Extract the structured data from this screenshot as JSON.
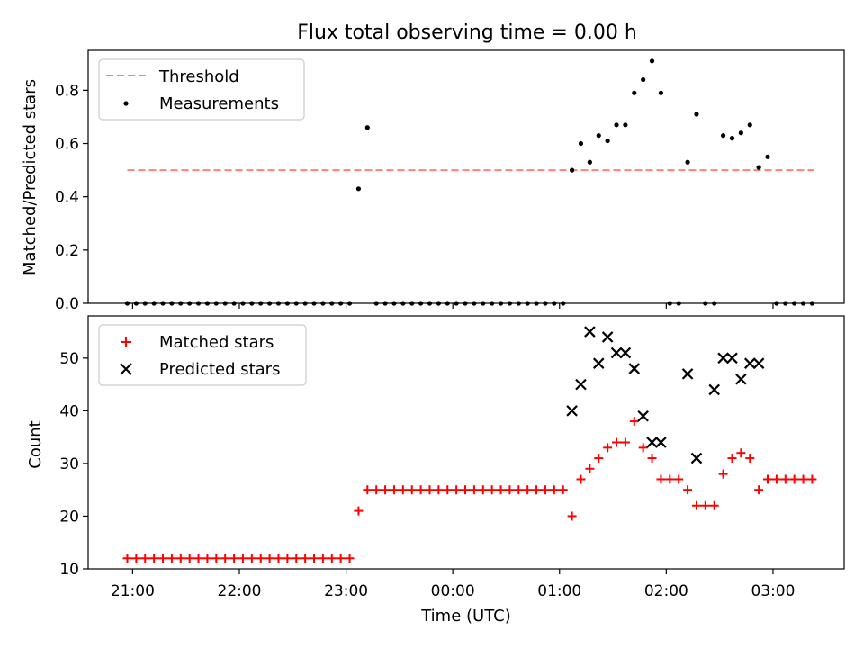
{
  "figure": {
    "title": "Flux total observing time = 0.00 h"
  },
  "chart_data": [
    {
      "type": "scatter",
      "panel": "top",
      "ylabel": "Matched/Predicted stars",
      "xlabel": "",
      "ylim": [
        0,
        0.95
      ],
      "y_ticks": [
        "0.0",
        "0.2",
        "0.4",
        "0.6",
        "0.8"
      ],
      "grid": false,
      "legend_position": "upper-left",
      "series": [
        {
          "name": "Threshold",
          "kind": "dashed-line",
          "color": "#ff7f7f",
          "x": [
            "20:57",
            "03:23"
          ],
          "values": [
            0.5,
            0.5
          ]
        },
        {
          "name": "Measurements",
          "kind": "dot",
          "color": "#000000",
          "x": [
            "20:57",
            "21:02",
            "21:07",
            "21:12",
            "21:17",
            "21:22",
            "21:27",
            "21:32",
            "21:37",
            "21:42",
            "21:47",
            "21:52",
            "21:57",
            "22:02",
            "22:07",
            "22:12",
            "22:17",
            "22:22",
            "22:27",
            "22:32",
            "22:37",
            "22:42",
            "22:47",
            "22:52",
            "22:57",
            "23:02",
            "23:07",
            "23:12",
            "23:17",
            "23:22",
            "23:27",
            "23:32",
            "23:37",
            "23:42",
            "23:47",
            "23:52",
            "23:57",
            "00:02",
            "00:07",
            "00:12",
            "00:17",
            "00:22",
            "00:27",
            "00:32",
            "00:37",
            "00:42",
            "00:47",
            "00:52",
            "00:57",
            "01:02",
            "01:07",
            "01:12",
            "01:17",
            "01:22",
            "01:27",
            "01:32",
            "01:37",
            "01:42",
            "01:47",
            "01:52",
            "01:57",
            "02:02",
            "02:07",
            "02:12",
            "02:17",
            "02:22",
            "02:27",
            "02:32",
            "02:37",
            "02:42",
            "02:47",
            "02:52",
            "02:57",
            "03:02",
            "03:07",
            "03:12",
            "03:17",
            "03:22"
          ],
          "values": [
            0,
            0,
            0,
            0,
            0,
            0,
            0,
            0,
            0,
            0,
            0,
            0,
            0,
            0,
            0,
            0,
            0,
            0,
            0,
            0,
            0,
            0,
            0,
            0,
            0,
            0,
            0.43,
            0.66,
            0,
            0,
            0,
            0,
            0,
            0,
            0,
            0,
            0,
            0,
            0,
            0,
            0,
            0,
            0,
            0,
            0,
            0,
            0,
            0,
            0,
            0,
            0.5,
            0.6,
            0.53,
            0.63,
            0.61,
            0.67,
            0.67,
            0.79,
            0.84,
            0.91,
            0.79,
            0,
            0,
            0.53,
            0.71,
            0,
            0,
            0.63,
            0.62,
            0.64,
            0.67,
            0.51,
            0.55,
            0,
            0,
            0,
            0,
            0
          ]
        }
      ]
    },
    {
      "type": "scatter",
      "panel": "bottom",
      "xlabel": "Time (UTC)",
      "ylabel": "Count",
      "xlim": [
        "20:35",
        "03:40"
      ],
      "x_ticks": [
        "21:00",
        "22:00",
        "23:00",
        "00:00",
        "01:00",
        "02:00",
        "03:00"
      ],
      "ylim": [
        10,
        58
      ],
      "y_ticks": [
        "10",
        "20",
        "30",
        "40",
        "50"
      ],
      "grid": false,
      "legend_position": "upper-left",
      "series": [
        {
          "name": "Matched stars",
          "marker": "plus",
          "color": "#ff0000",
          "x": [
            "20:57",
            "21:02",
            "21:07",
            "21:12",
            "21:17",
            "21:22",
            "21:27",
            "21:32",
            "21:37",
            "21:42",
            "21:47",
            "21:52",
            "21:57",
            "22:02",
            "22:07",
            "22:12",
            "22:17",
            "22:22",
            "22:27",
            "22:32",
            "22:37",
            "22:42",
            "22:47",
            "22:52",
            "22:57",
            "23:02",
            "23:07",
            "23:12",
            "23:17",
            "23:22",
            "23:27",
            "23:32",
            "23:37",
            "23:42",
            "23:47",
            "23:52",
            "23:57",
            "00:02",
            "00:07",
            "00:12",
            "00:17",
            "00:22",
            "00:27",
            "00:32",
            "00:37",
            "00:42",
            "00:47",
            "00:52",
            "00:57",
            "01:02",
            "01:07",
            "01:12",
            "01:17",
            "01:22",
            "01:27",
            "01:32",
            "01:37",
            "01:42",
            "01:47",
            "01:52",
            "01:57",
            "02:02",
            "02:07",
            "02:12",
            "02:17",
            "02:22",
            "02:27",
            "02:32",
            "02:37",
            "02:42",
            "02:47",
            "02:52",
            "02:57",
            "03:02",
            "03:07",
            "03:12",
            "03:17",
            "03:22"
          ],
          "values": [
            12,
            12,
            12,
            12,
            12,
            12,
            12,
            12,
            12,
            12,
            12,
            12,
            12,
            12,
            12,
            12,
            12,
            12,
            12,
            12,
            12,
            12,
            12,
            12,
            12,
            12,
            21,
            25,
            25,
            25,
            25,
            25,
            25,
            25,
            25,
            25,
            25,
            25,
            25,
            25,
            25,
            25,
            25,
            25,
            25,
            25,
            25,
            25,
            25,
            25,
            20,
            27,
            29,
            31,
            33,
            34,
            34,
            38,
            33,
            31,
            27,
            27,
            27,
            25,
            22,
            22,
            22,
            28,
            31,
            32,
            31,
            25,
            27,
            27,
            27,
            27,
            27,
            27
          ]
        },
        {
          "name": "Predicted stars",
          "marker": "x",
          "color": "#000000",
          "x": [
            "01:07",
            "01:12",
            "01:17",
            "01:22",
            "01:27",
            "01:32",
            "01:37",
            "01:42",
            "01:47",
            "01:52",
            "01:57",
            "02:12",
            "02:17",
            "02:27",
            "02:32",
            "02:37",
            "02:42",
            "02:47",
            "02:52"
          ],
          "values": [
            40,
            45,
            55,
            49,
            54,
            51,
            51,
            48,
            39,
            34,
            34,
            47,
            31,
            44,
            50,
            50,
            46,
            49,
            49
          ]
        }
      ]
    }
  ]
}
